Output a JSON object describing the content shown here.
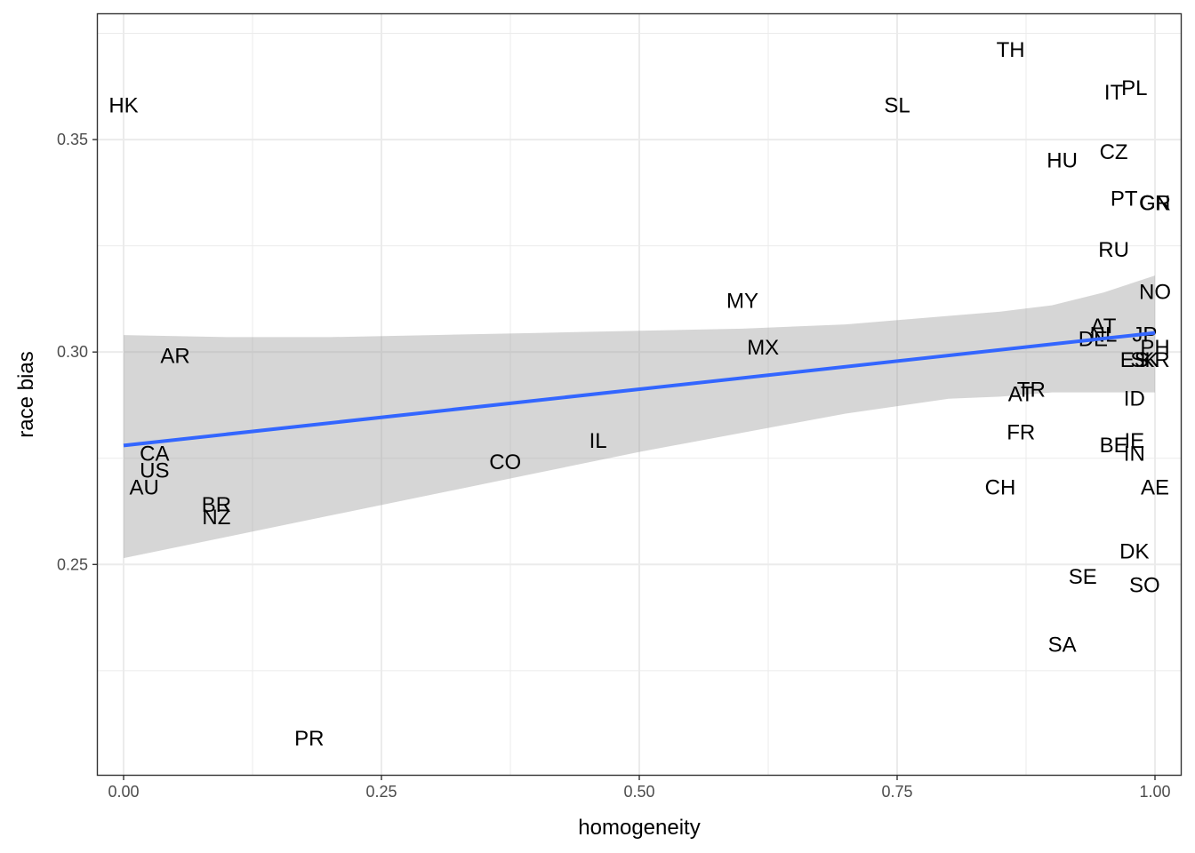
{
  "chart_data": {
    "type": "scatter",
    "xlabel": "homogeneity",
    "ylabel": "race bias",
    "xlim": [
      -0.025,
      1.025
    ],
    "ylim": [
      0.2005,
      0.3795
    ],
    "x_ticks": [
      0.0,
      0.25,
      0.5,
      0.75,
      1.0
    ],
    "x_tick_labels": [
      "0.00",
      "0.25",
      "0.50",
      "0.75",
      "1.00"
    ],
    "y_ticks": [
      0.25,
      0.3,
      0.35
    ],
    "y_tick_labels": [
      "0.25",
      "0.30",
      "0.35"
    ],
    "grid": true,
    "points": [
      {
        "label": "HK",
        "x": 0.0,
        "y": 0.358
      },
      {
        "label": "TH",
        "x": 0.86,
        "y": 0.371
      },
      {
        "label": "SL",
        "x": 0.75,
        "y": 0.358
      },
      {
        "label": "IT",
        "x": 0.96,
        "y": 0.361
      },
      {
        "label": "PL",
        "x": 0.98,
        "y": 0.362
      },
      {
        "label": "HU",
        "x": 0.91,
        "y": 0.345
      },
      {
        "label": "CZ",
        "x": 0.96,
        "y": 0.347
      },
      {
        "label": "PT",
        "x": 0.97,
        "y": 0.336
      },
      {
        "label": "GR",
        "x": 1.0,
        "y": 0.335
      },
      {
        "label": "CN",
        "x": 1.0,
        "y": 0.335
      },
      {
        "label": "RU",
        "x": 0.96,
        "y": 0.324
      },
      {
        "label": "NO",
        "x": 1.0,
        "y": 0.314
      },
      {
        "label": "MY",
        "x": 0.6,
        "y": 0.312
      },
      {
        "label": "AT",
        "x": 0.95,
        "y": 0.306
      },
      {
        "label": "NL",
        "x": 0.95,
        "y": 0.304
      },
      {
        "label": "DE",
        "x": 0.94,
        "y": 0.303
      },
      {
        "label": "JP",
        "x": 0.99,
        "y": 0.304
      },
      {
        "label": "PH",
        "x": 1.0,
        "y": 0.301
      },
      {
        "label": "ES",
        "x": 0.98,
        "y": 0.298
      },
      {
        "label": "SK",
        "x": 0.99,
        "y": 0.298
      },
      {
        "label": "KR",
        "x": 1.0,
        "y": 0.298
      },
      {
        "label": "MX",
        "x": 0.62,
        "y": 0.301
      },
      {
        "label": "AR",
        "x": 0.05,
        "y": 0.299
      },
      {
        "label": "AT",
        "x": 0.87,
        "y": 0.29
      },
      {
        "label": "TR",
        "x": 0.88,
        "y": 0.291
      },
      {
        "label": "ID",
        "x": 0.98,
        "y": 0.289
      },
      {
        "label": "FR",
        "x": 0.87,
        "y": 0.281
      },
      {
        "label": "BE",
        "x": 0.96,
        "y": 0.278
      },
      {
        "label": "IE",
        "x": 0.98,
        "y": 0.279
      },
      {
        "label": "IN",
        "x": 0.98,
        "y": 0.276
      },
      {
        "label": "IL",
        "x": 0.46,
        "y": 0.279
      },
      {
        "label": "CO",
        "x": 0.37,
        "y": 0.274
      },
      {
        "label": "CA",
        "x": 0.03,
        "y": 0.276
      },
      {
        "label": "US",
        "x": 0.03,
        "y": 0.272
      },
      {
        "label": "AU",
        "x": 0.02,
        "y": 0.268
      },
      {
        "label": "CH",
        "x": 0.85,
        "y": 0.268
      },
      {
        "label": "AE",
        "x": 1.0,
        "y": 0.268
      },
      {
        "label": "BR",
        "x": 0.09,
        "y": 0.264
      },
      {
        "label": "NZ",
        "x": 0.09,
        "y": 0.261
      },
      {
        "label": "DK",
        "x": 0.98,
        "y": 0.253
      },
      {
        "label": "SE",
        "x": 0.93,
        "y": 0.247
      },
      {
        "label": "SO",
        "x": 0.99,
        "y": 0.245
      },
      {
        "label": "SA",
        "x": 0.91,
        "y": 0.231
      },
      {
        "label": "PR",
        "x": 0.18,
        "y": 0.209
      }
    ],
    "fit_line": {
      "x": [
        0.0,
        1.0
      ],
      "y": [
        0.278,
        0.3045
      ],
      "color": "#3366FF"
    },
    "confidence_band": {
      "x": [
        0.0,
        0.1,
        0.2,
        0.3,
        0.4,
        0.5,
        0.6,
        0.7,
        0.8,
        0.85,
        0.9,
        0.95,
        1.0
      ],
      "upper": [
        0.304,
        0.3035,
        0.3035,
        0.304,
        0.3045,
        0.305,
        0.3055,
        0.3065,
        0.3085,
        0.3095,
        0.311,
        0.314,
        0.318
      ],
      "lower": [
        0.2515,
        0.2565,
        0.2615,
        0.2665,
        0.2715,
        0.2765,
        0.281,
        0.2855,
        0.289,
        0.2895,
        0.2905,
        0.2905,
        0.2905
      ],
      "color": "#999999"
    }
  }
}
